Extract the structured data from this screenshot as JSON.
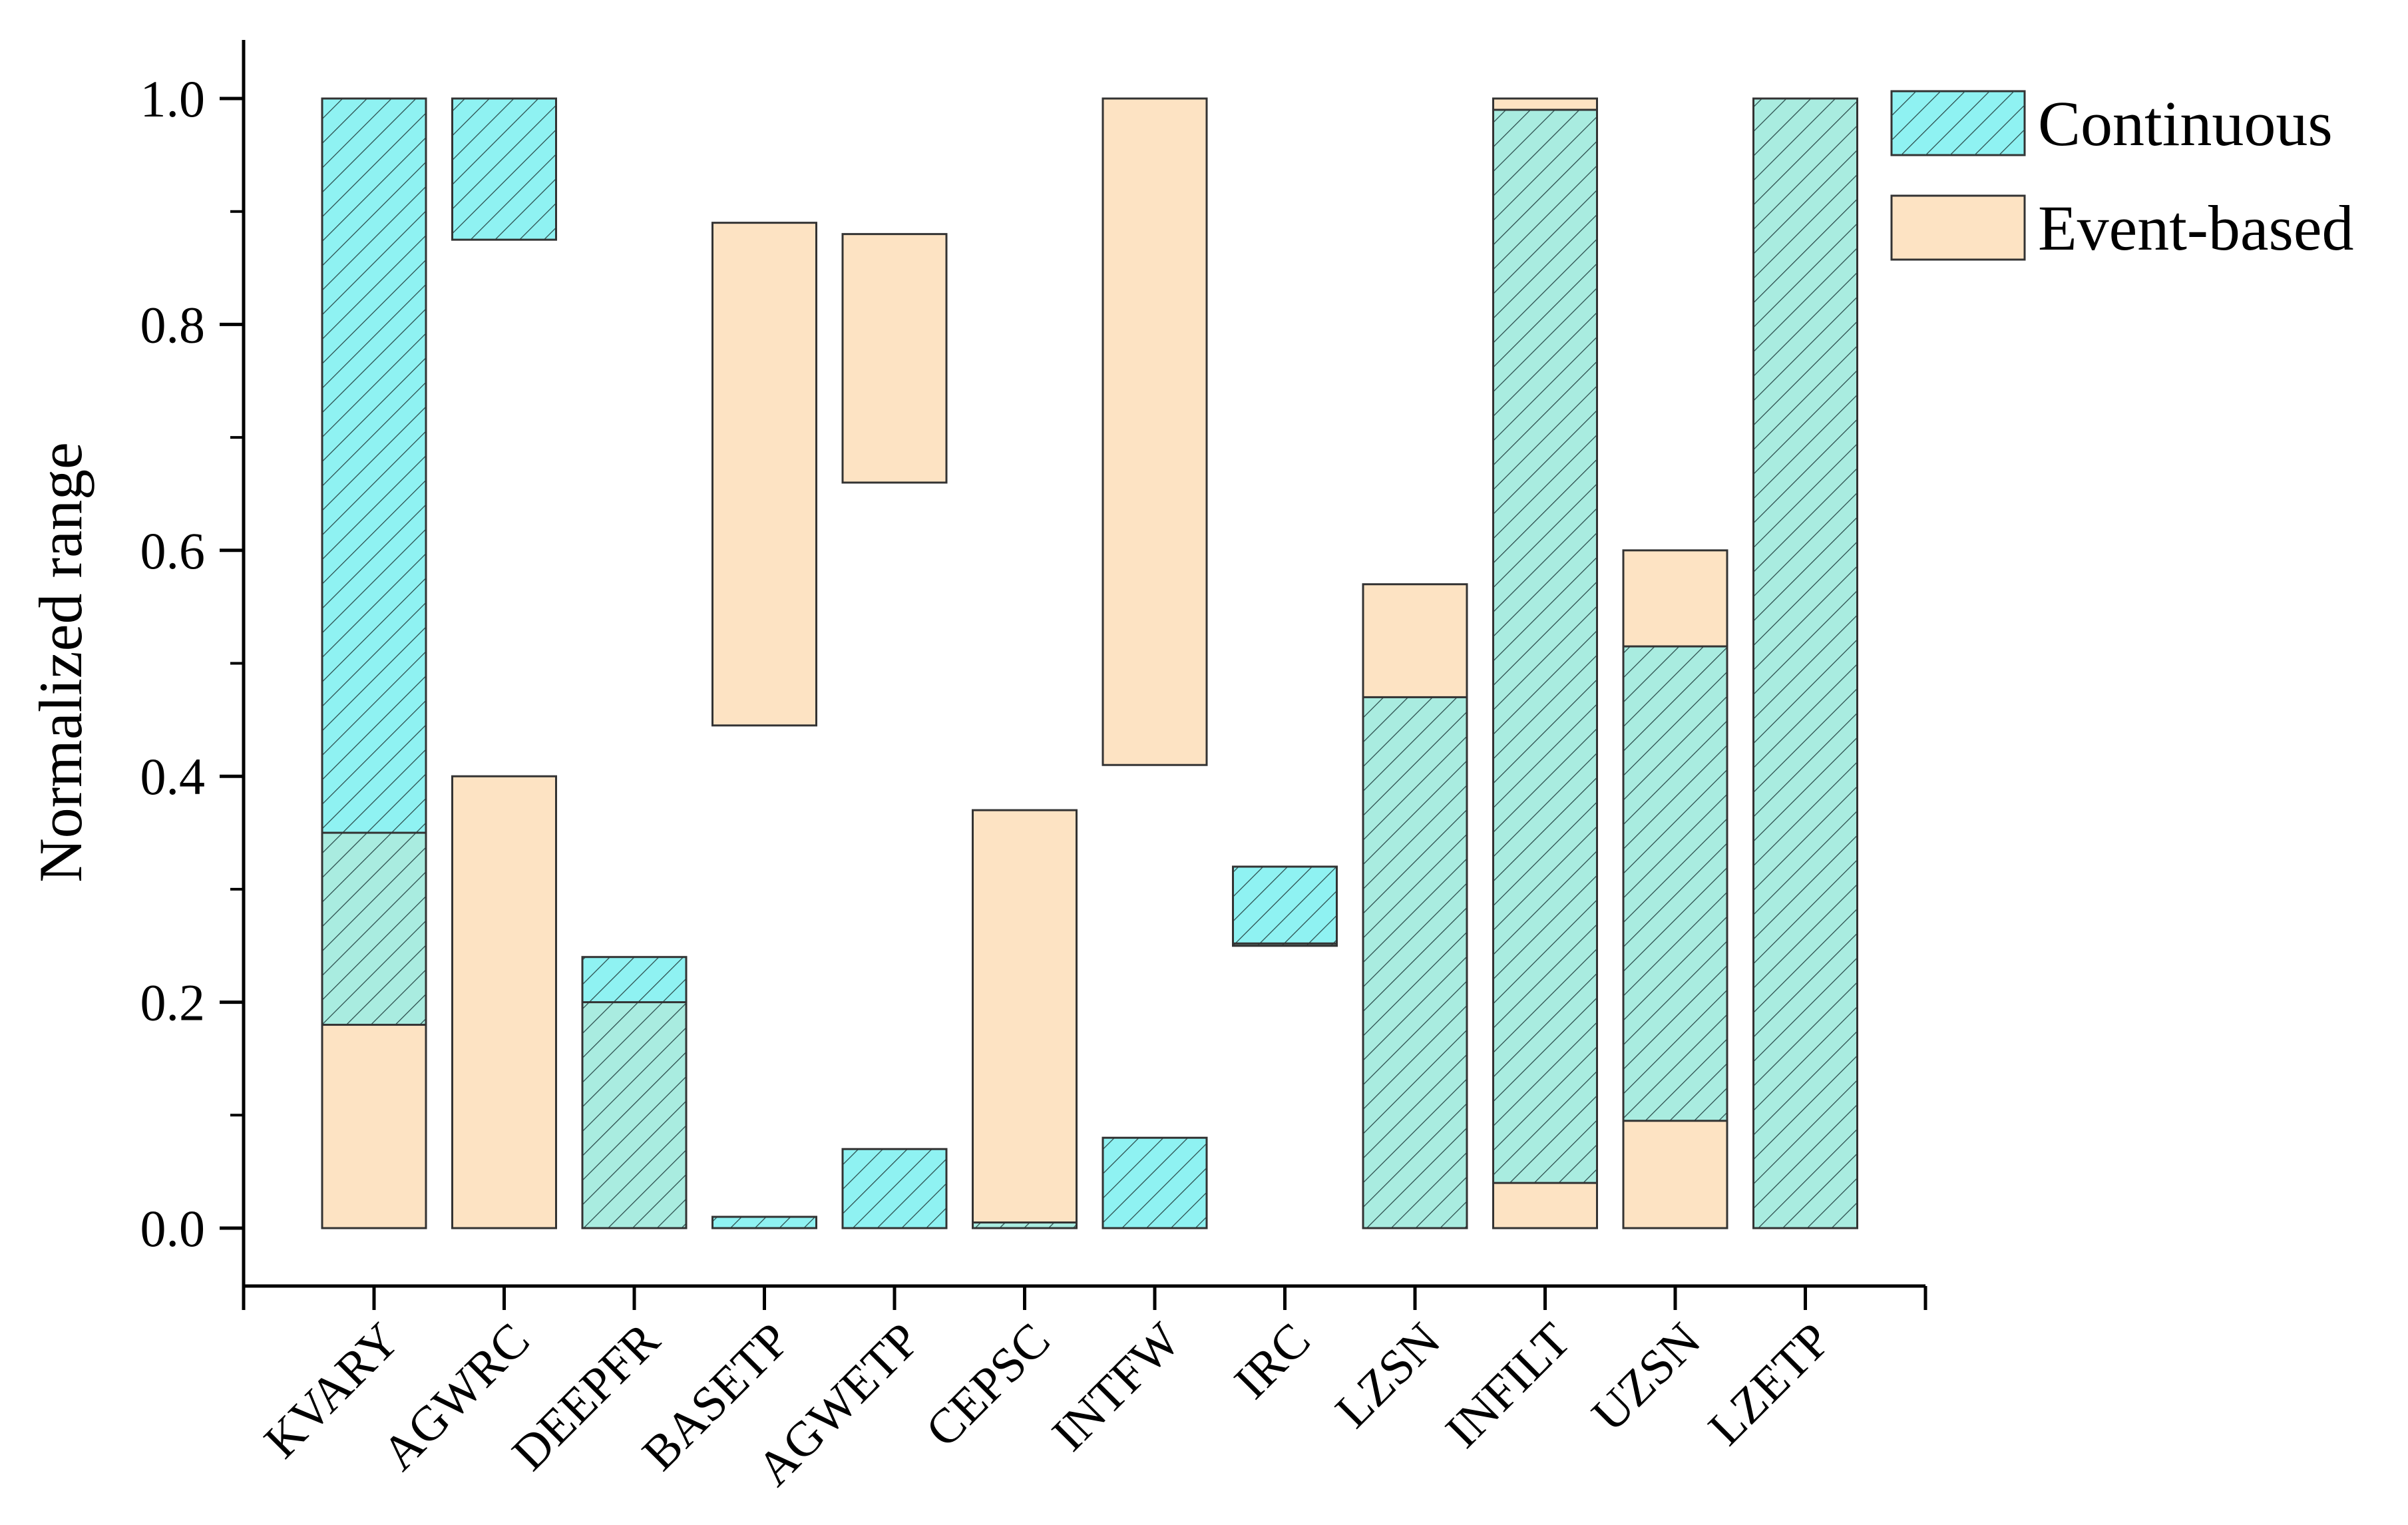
{
  "chart_data": {
    "type": "bar",
    "subtype": "floating-range",
    "title": "",
    "xlabel": "",
    "ylabel": "Normalized range",
    "ylim": [
      0,
      1.0
    ],
    "yticks": [
      "0.0",
      "0.2",
      "0.4",
      "0.6",
      "0.8",
      "1.0"
    ],
    "ytick_values": [
      0,
      0.2,
      0.4,
      0.6,
      0.8,
      1.0
    ],
    "grid": false,
    "legend_position": "top-right",
    "categories": [
      "KVARY",
      "AGWRC",
      "DEEPFR",
      "BASETP",
      "AGWETP",
      "CEPSC",
      "INTFW",
      "IRC",
      "LZSN",
      "INFILT",
      "UZSN",
      "LZETP"
    ],
    "series": [
      {
        "name": "Continuous",
        "color": "#8ff2f2",
        "pattern": "diagonal-hatch",
        "ranges": [
          [
            0.18,
            1.0
          ],
          [
            0.875,
            1.0
          ],
          [
            0.0,
            0.24
          ],
          [
            0.0,
            0.01
          ],
          [
            0.0,
            0.07
          ],
          [
            0.0,
            0.005
          ],
          [
            0.0,
            0.08
          ],
          [
            0.25,
            0.32
          ],
          [
            0.0,
            0.47
          ],
          [
            0.04,
            0.99
          ],
          [
            0.095,
            0.515
          ],
          [
            0.0,
            1.0
          ]
        ]
      },
      {
        "name": "Event-based",
        "color": "#fde3c3",
        "pattern": "solid",
        "ranges": [
          [
            0.0,
            0.35
          ],
          [
            0.0,
            0.4
          ],
          [
            0.0,
            0.2
          ],
          [
            0.445,
            0.89
          ],
          [
            0.66,
            0.88
          ],
          [
            0.0,
            0.37
          ],
          [
            0.41,
            1.0
          ],
          [
            0.25,
            0.252
          ],
          [
            0.0,
            0.57
          ],
          [
            0.0,
            1.0
          ],
          [
            0.0,
            0.6
          ],
          [
            0.0,
            1.0
          ]
        ]
      }
    ],
    "overlap_color": "#a9ece0"
  }
}
